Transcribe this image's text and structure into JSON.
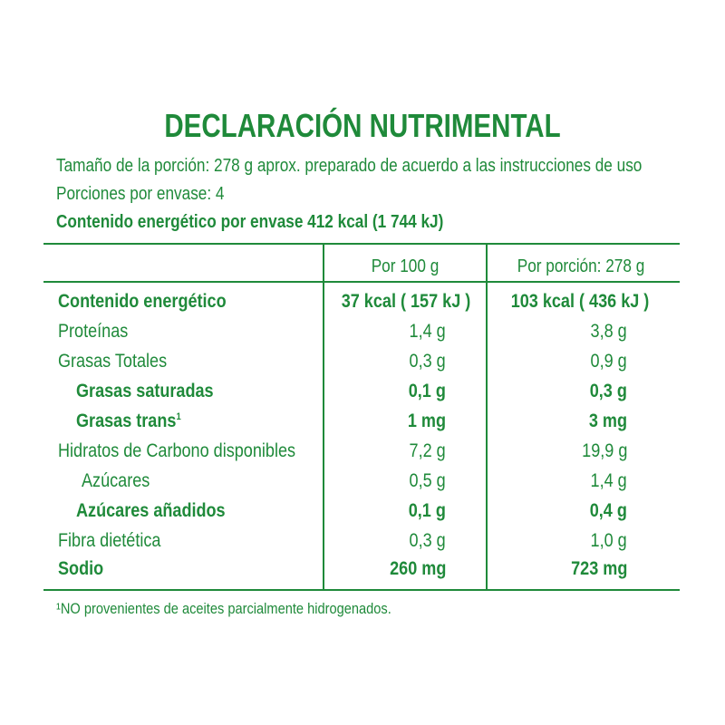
{
  "title": "DECLARACIÓN NUTRIMENTAL",
  "serving_size": "Tamaño de la porción: 278 g aprox. preparado de acuerdo a las instrucciones de uso",
  "servings_per_pack": "Porciones por envase: 4",
  "energy_per_pack": "Contenido energético por envase 412 kcal (1 744 kJ)",
  "headers": {
    "per100": "Por 100 g",
    "per_portion": "Por porción: 278 g"
  },
  "rows": [
    {
      "name": "Contenido energético",
      "v1": "37 kcal (  157 kJ  )",
      "v2": "103 kcal ( 436 kJ  )"
    },
    {
      "name": "Proteínas",
      "v1": "1,4 g",
      "v2": "3,8 g"
    },
    {
      "name": "Grasas Totales",
      "v1": "0,3 g",
      "v2": "0,9 g"
    },
    {
      "name": "Grasas saturadas",
      "v1": "0,1 g",
      "v2": "0,3 g"
    },
    {
      "name": "Grasas trans",
      "sup": "1",
      "v1": "1 mg",
      "v2": "3 mg"
    },
    {
      "name": "Hidratos de Carbono disponibles",
      "v1": "7,2 g",
      "v2": "19,9 g"
    },
    {
      "name": "Azúcares",
      "v1": "0,5 g",
      "v2": "1,4 g"
    },
    {
      "name": "Azúcares añadidos",
      "v1": "0,1 g",
      "v2": "0,4 g"
    },
    {
      "name": "Fibra dietética",
      "v1": "0,3 g",
      "v2": "1,0 g"
    },
    {
      "name": "Sodio",
      "v1": "260 mg",
      "v2": "723 mg"
    }
  ],
  "footnote": "¹NO provenientes de aceites parcialmente hidrogenados.",
  "colors": {
    "text": "#1f8a3a",
    "background": "#ffffff"
  }
}
